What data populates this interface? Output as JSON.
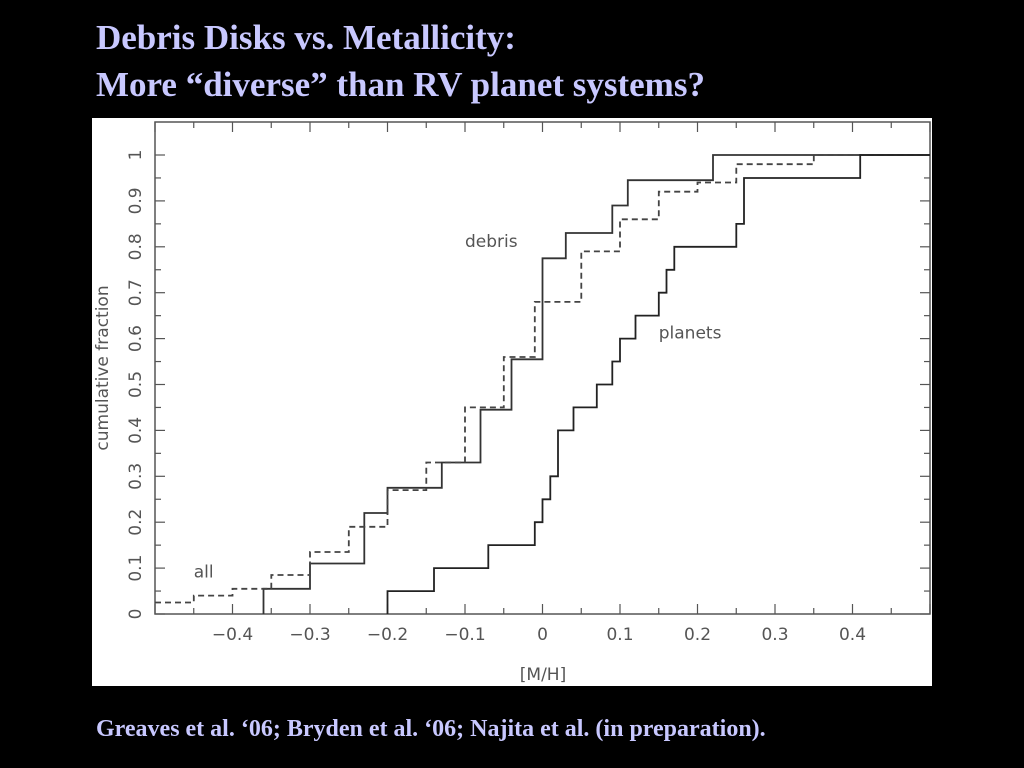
{
  "slide": {
    "title_line1": "Debris Disks vs. Metallicity:",
    "title_line2": "More “diverse” than RV planet systems?",
    "citation": "Greaves et al. ‘06; Bryden et al. ‘06; Najita et al. (in preparation)."
  },
  "colors": {
    "background": "#000000",
    "text": "#c8c8ff",
    "plot_background": "#ffffff",
    "axes": "#555555",
    "debris": "#333333",
    "all": "#444444",
    "planets": "#222222"
  },
  "chart_data": {
    "type": "line",
    "xlabel": "[M/H]",
    "ylabel": "cumulative fraction",
    "xlim": [
      -0.5,
      0.5
    ],
    "ylim": [
      0,
      1.0
    ],
    "xticks": [
      {
        "value": -0.4,
        "label": "−0.4"
      },
      {
        "value": -0.3,
        "label": "−0.3"
      },
      {
        "value": -0.2,
        "label": "−0.2"
      },
      {
        "value": -0.1,
        "label": "−0.1"
      },
      {
        "value": 0,
        "label": "0"
      },
      {
        "value": 0.1,
        "label": "0.1"
      },
      {
        "value": 0.2,
        "label": "0.2"
      },
      {
        "value": 0.3,
        "label": "0.3"
      },
      {
        "value": 0.4,
        "label": "0.4"
      }
    ],
    "yticks": [
      {
        "value": 0,
        "label": "0"
      },
      {
        "value": 0.1,
        "label": "0.1"
      },
      {
        "value": 0.2,
        "label": "0.2"
      },
      {
        "value": 0.3,
        "label": "0.3"
      },
      {
        "value": 0.4,
        "label": "0.4"
      },
      {
        "value": 0.5,
        "label": "0.5"
      },
      {
        "value": 0.6,
        "label": "0.6"
      },
      {
        "value": 0.7,
        "label": "0.7"
      },
      {
        "value": 0.8,
        "label": "0.8"
      },
      {
        "value": 0.9,
        "label": "0.9"
      },
      {
        "value": 1,
        "label": "1"
      }
    ],
    "series": [
      {
        "name": "debris",
        "style": "solid",
        "steps": [
          [
            -0.36,
            0.0
          ],
          [
            -0.36,
            0.055
          ],
          [
            -0.3,
            0.055
          ],
          [
            -0.3,
            0.11
          ],
          [
            -0.23,
            0.11
          ],
          [
            -0.23,
            0.22
          ],
          [
            -0.2,
            0.22
          ],
          [
            -0.2,
            0.275
          ],
          [
            -0.13,
            0.275
          ],
          [
            -0.13,
            0.33
          ],
          [
            -0.08,
            0.33
          ],
          [
            -0.08,
            0.445
          ],
          [
            -0.04,
            0.445
          ],
          [
            -0.04,
            0.555
          ],
          [
            0.0,
            0.555
          ],
          [
            0.0,
            0.775
          ],
          [
            0.03,
            0.775
          ],
          [
            0.03,
            0.83
          ],
          [
            0.09,
            0.83
          ],
          [
            0.09,
            0.89
          ],
          [
            0.11,
            0.89
          ],
          [
            0.11,
            0.945
          ],
          [
            0.2,
            0.945
          ],
          [
            0.2,
            0.945
          ],
          [
            0.22,
            0.945
          ],
          [
            0.22,
            1.0
          ],
          [
            0.5,
            1.0
          ]
        ]
      },
      {
        "name": "all",
        "style": "dashed",
        "steps": [
          [
            -0.5,
            0.025
          ],
          [
            -0.45,
            0.025
          ],
          [
            -0.45,
            0.04
          ],
          [
            -0.4,
            0.04
          ],
          [
            -0.4,
            0.055
          ],
          [
            -0.35,
            0.055
          ],
          [
            -0.35,
            0.085
          ],
          [
            -0.3,
            0.085
          ],
          [
            -0.3,
            0.135
          ],
          [
            -0.25,
            0.135
          ],
          [
            -0.25,
            0.19
          ],
          [
            -0.2,
            0.19
          ],
          [
            -0.2,
            0.27
          ],
          [
            -0.15,
            0.27
          ],
          [
            -0.15,
            0.33
          ],
          [
            -0.1,
            0.33
          ],
          [
            -0.1,
            0.45
          ],
          [
            -0.05,
            0.45
          ],
          [
            -0.05,
            0.56
          ],
          [
            -0.01,
            0.56
          ],
          [
            -0.01,
            0.68
          ],
          [
            0.05,
            0.68
          ],
          [
            0.05,
            0.79
          ],
          [
            0.1,
            0.79
          ],
          [
            0.1,
            0.86
          ],
          [
            0.15,
            0.86
          ],
          [
            0.15,
            0.92
          ],
          [
            0.2,
            0.92
          ],
          [
            0.2,
            0.94
          ],
          [
            0.25,
            0.94
          ],
          [
            0.25,
            0.98
          ],
          [
            0.35,
            0.98
          ],
          [
            0.35,
            1.0
          ],
          [
            0.5,
            1.0
          ]
        ]
      },
      {
        "name": "planets",
        "style": "solid",
        "steps": [
          [
            -0.2,
            0.0
          ],
          [
            -0.2,
            0.05
          ],
          [
            -0.14,
            0.05
          ],
          [
            -0.14,
            0.1
          ],
          [
            -0.07,
            0.1
          ],
          [
            -0.07,
            0.15
          ],
          [
            -0.01,
            0.15
          ],
          [
            -0.01,
            0.2
          ],
          [
            0.0,
            0.2
          ],
          [
            0.0,
            0.25
          ],
          [
            0.01,
            0.25
          ],
          [
            0.01,
            0.3
          ],
          [
            0.02,
            0.3
          ],
          [
            0.02,
            0.4
          ],
          [
            0.04,
            0.4
          ],
          [
            0.04,
            0.45
          ],
          [
            0.07,
            0.45
          ],
          [
            0.07,
            0.5
          ],
          [
            0.09,
            0.5
          ],
          [
            0.09,
            0.55
          ],
          [
            0.1,
            0.55
          ],
          [
            0.1,
            0.6
          ],
          [
            0.12,
            0.6
          ],
          [
            0.12,
            0.65
          ],
          [
            0.15,
            0.65
          ],
          [
            0.15,
            0.7
          ],
          [
            0.16,
            0.7
          ],
          [
            0.16,
            0.75
          ],
          [
            0.17,
            0.75
          ],
          [
            0.17,
            0.8
          ],
          [
            0.25,
            0.8
          ],
          [
            0.25,
            0.85
          ],
          [
            0.26,
            0.85
          ],
          [
            0.26,
            0.95
          ],
          [
            0.41,
            0.95
          ],
          [
            0.41,
            1.0
          ],
          [
            0.5,
            1.0
          ]
        ]
      }
    ],
    "annotations": [
      {
        "text": "debris",
        "x": -0.1,
        "y": 0.8
      },
      {
        "text": "planets",
        "x": 0.15,
        "y": 0.6
      },
      {
        "text": "all",
        "x": -0.45,
        "y": 0.08
      }
    ]
  }
}
